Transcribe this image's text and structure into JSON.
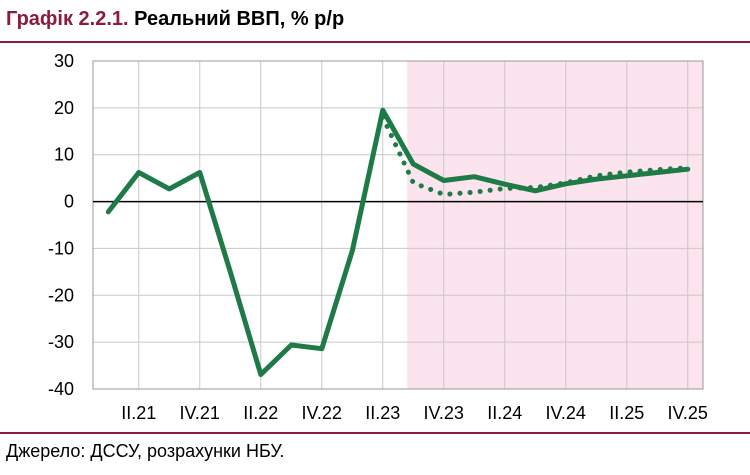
{
  "title": {
    "prefix": "Графік 2.2.1.",
    "text": "Реальний ВВП, % р/р"
  },
  "source": "Джерело: ДССУ, розрахунки НБУ.",
  "colors": {
    "title_accent": "#8c1c3c",
    "series": "#1e7a47",
    "forecast_band": "#fce4ee",
    "grid": "#c8c8c8"
  },
  "chart_data": {
    "type": "line",
    "title": "Реальний ВВП, % р/р",
    "xlabel": "",
    "ylabel": "",
    "ylim": [
      -40,
      30
    ],
    "yticks": [
      30,
      20,
      10,
      0,
      -10,
      -20,
      -30,
      -40
    ],
    "xtick_labels": [
      "II.21",
      "IV.21",
      "II.22",
      "IV.22",
      "II.23",
      "IV.23",
      "II.24",
      "IV.24",
      "II.25",
      "IV.25"
    ],
    "x": [
      "I.21",
      "II.21",
      "III.21",
      "IV.21",
      "I.22",
      "II.22",
      "III.22",
      "IV.22",
      "I.23",
      "II.23",
      "III.23",
      "IV.23",
      "I.24",
      "II.24",
      "III.24",
      "IV.24",
      "I.25",
      "II.25",
      "III.25",
      "IV.25"
    ],
    "forecast_start": "III.23",
    "series": [
      {
        "style": "solid",
        "values": [
          -2.2,
          6.2,
          2.7,
          6.2,
          -15.0,
          -36.9,
          -30.6,
          -31.4,
          -10.5,
          19.5,
          8.0,
          4.5,
          5.3,
          3.7,
          2.3,
          3.8,
          4.8,
          5.5,
          6.2,
          6.9
        ]
      },
      {
        "style": "dotted",
        "values": [
          null,
          null,
          null,
          null,
          null,
          null,
          null,
          null,
          null,
          18.0,
          4.0,
          1.5,
          2.0,
          2.8,
          3.0,
          4.0,
          5.5,
          6.3,
          6.8,
          7.2
        ]
      }
    ],
    "grid": true,
    "forecast_shaded": true
  }
}
